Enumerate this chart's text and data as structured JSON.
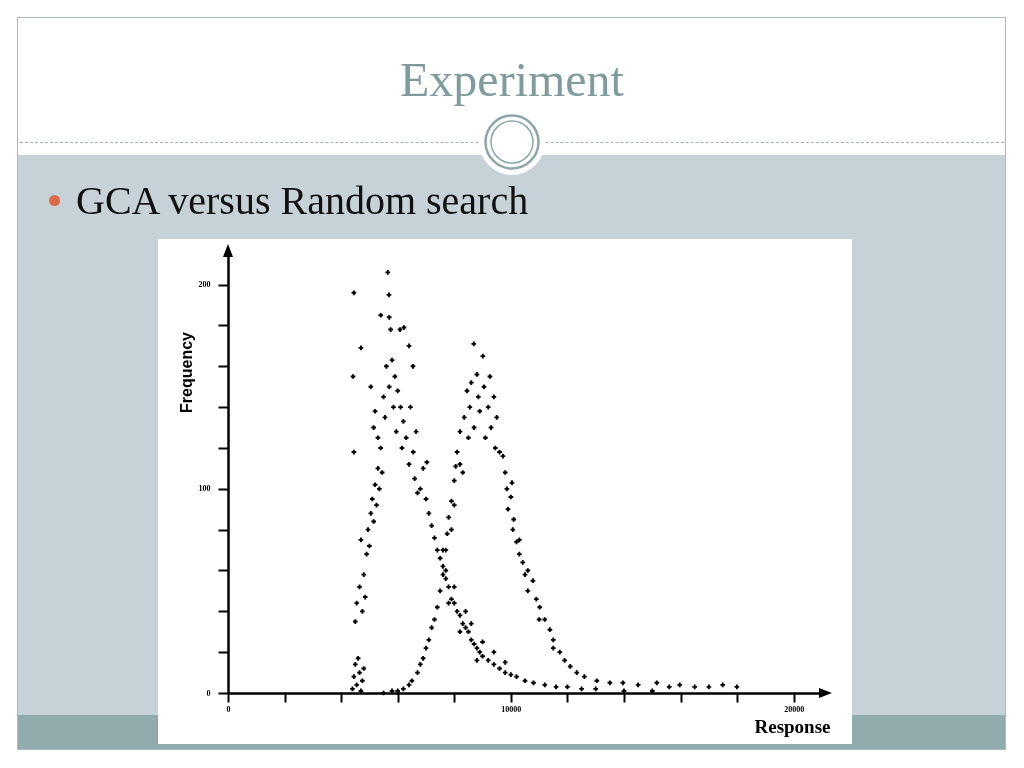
{
  "chart_data": {
    "type": "scatter",
    "title": "Experiment",
    "subtitle": "GCA versus Random search",
    "xlabel": "Response",
    "ylabel": "Frequency",
    "xlim": [
      0,
      21000
    ],
    "ylim": [
      0,
      215
    ],
    "xticks": [
      0,
      {
        "value": 2000,
        "label": null
      },
      {
        "value": 4000,
        "label": null
      },
      {
        "value": 6000,
        "label": null
      },
      {
        "value": 8000,
        "label": null
      },
      10000,
      {
        "value": 12000,
        "label": null
      },
      {
        "value": 14000,
        "label": null
      },
      {
        "value": 16000,
        "label": null
      },
      {
        "value": 18000,
        "label": null
      },
      20000
    ],
    "yticks": [
      0,
      {
        "value": 20,
        "label": null
      },
      {
        "value": 40,
        "label": null
      },
      {
        "value": 60,
        "label": null
      },
      {
        "value": 80,
        "label": null
      },
      100,
      {
        "value": 120,
        "label": null
      },
      {
        "value": 140,
        "label": null
      },
      {
        "value": 160,
        "label": null
      },
      {
        "value": 180,
        "label": null
      },
      200
    ],
    "marker": "cross",
    "series": [
      {
        "color": "#000000",
        "x": [
          4400,
          4450,
          4500,
          4550,
          4600,
          4650,
          4700,
          4750,
          4800,
          4500,
          4550,
          4650,
          4750,
          4800,
          4850,
          4700,
          4900,
          4950,
          5000,
          5050,
          5100,
          5150,
          5200,
          5250,
          4450,
          5300,
          5350,
          5400,
          5450,
          4420,
          4450,
          4700,
          5050,
          5150,
          5200,
          5300,
          5400,
          5500,
          5550,
          5600,
          5650,
          5690,
          5700,
          5700,
          5750,
          5800,
          5850,
          5900,
          5950,
          6000,
          6080,
          6100,
          6150,
          6200,
          6220,
          6300,
          6400,
          6400,
          6450,
          6540,
          6550,
          6600,
          6650,
          6700,
          6800,
          6900,
          7000,
          7030,
          7100,
          7200,
          7300,
          7400,
          7500,
          7600,
          7600,
          7700,
          7800,
          7800,
          7900,
          8000,
          8000,
          8100,
          8200,
          8200,
          8300,
          8400,
          8400,
          8500,
          8600,
          8600,
          8700,
          8800,
          8800,
          8900,
          9000,
          9000,
          9200,
          9400,
          9400,
          9600,
          9800,
          9800,
          10000,
          10200,
          10500,
          10800,
          11200,
          11600,
          12000,
          12500,
          13000,
          14000,
          15000
        ],
        "values": [
          2,
          8,
          14,
          4,
          17,
          10,
          1,
          6,
          12,
          35,
          44,
          52,
          40,
          58,
          47,
          75,
          68,
          80,
          72,
          88,
          95,
          84,
          102,
          92,
          118,
          110,
          100,
          120,
          108,
          155,
          196,
          169,
          150,
          130,
          138,
          125,
          185,
          145,
          135,
          160,
          206,
          195,
          184,
          150,
          178,
          163,
          140,
          155,
          128,
          148,
          178,
          140,
          120,
          133,
          179,
          125,
          170,
          112,
          140,
          160,
          118,
          105,
          128,
          98,
          100,
          110,
          95,
          113,
          88,
          82,
          76,
          70,
          66,
          62,
          70,
          56,
          52,
          44,
          46,
          44,
          52,
          40,
          38,
          30,
          34,
          32,
          40,
          30,
          26,
          34,
          24,
          22,
          16,
          20,
          18,
          25,
          16,
          14,
          20,
          12,
          10,
          15,
          9,
          8,
          6,
          5,
          4,
          3,
          3,
          2,
          2,
          1,
          1
        ]
      },
      {
        "color": "#000000",
        "x": [
          5500,
          5800,
          6000,
          6200,
          6400,
          6500,
          6700,
          6800,
          6900,
          7000,
          7100,
          7200,
          7300,
          7400,
          7500,
          7600,
          7700,
          7700,
          7750,
          7800,
          7900,
          7900,
          8000,
          8000,
          8050,
          8100,
          8200,
          8200,
          8300,
          8350,
          8450,
          8500,
          8550,
          8600,
          8690,
          8700,
          8800,
          8850,
          8900,
          9010,
          9050,
          9100,
          9200,
          9260,
          9300,
          9400,
          9450,
          9500,
          9600,
          9720,
          9800,
          9860,
          9900,
          10000,
          10040,
          10070,
          10100,
          10200,
          10300,
          10300,
          10420,
          10500,
          10600,
          10600,
          10780,
          10900,
          11000,
          11020,
          11200,
          11380,
          11500,
          11500,
          11730,
          11900,
          12100,
          12330,
          12600,
          13040,
          13500,
          13960,
          14500,
          15160,
          15600,
          15970,
          16500,
          17000,
          17490,
          17990
        ],
        "values": [
          0,
          1,
          1,
          2,
          4,
          6,
          10,
          14,
          17,
          22,
          26,
          32,
          36,
          42,
          50,
          58,
          60,
          70,
          78,
          86,
          80,
          94,
          92,
          104,
          111,
          118,
          112,
          128,
          108,
          135,
          148,
          125,
          140,
          152,
          171,
          130,
          156,
          145,
          138,
          165,
          150,
          125,
          140,
          155,
          130,
          145,
          120,
          135,
          118,
          116,
          108,
          100,
          90,
          96,
          103,
          80,
          85,
          74,
          68,
          75,
          64,
          58,
          60,
          50,
          55,
          46,
          36,
          42,
          36,
          31,
          26,
          22,
          20,
          16,
          13,
          10,
          8,
          6,
          5,
          5,
          4,
          5,
          3,
          4,
          3,
          3,
          4,
          3
        ]
      }
    ]
  }
}
